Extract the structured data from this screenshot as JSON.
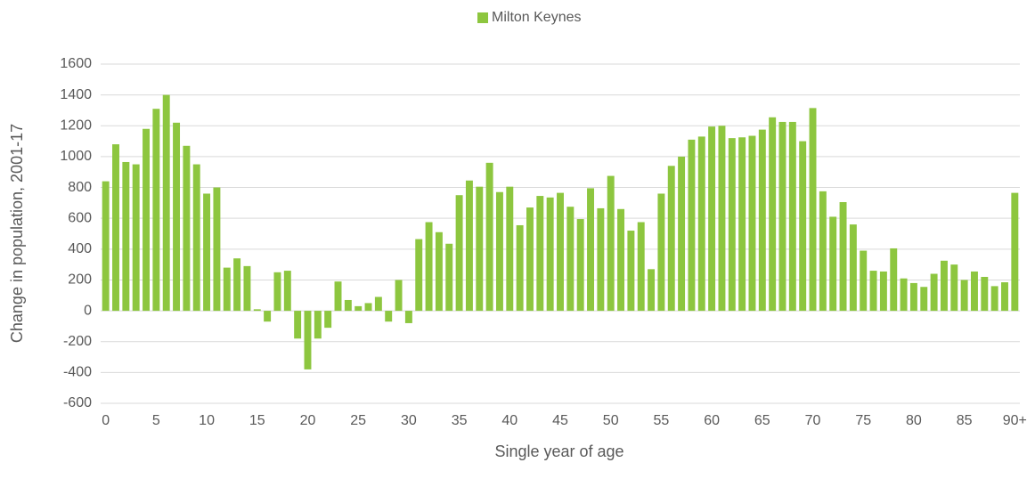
{
  "chart_data": {
    "type": "bar",
    "x_label": "Single year of age",
    "y_label": "Change in population, 2001-17",
    "categories": [
      "0",
      null,
      null,
      null,
      null,
      "5",
      null,
      null,
      null,
      null,
      "10",
      null,
      null,
      null,
      null,
      "15",
      null,
      null,
      null,
      null,
      "20",
      null,
      null,
      null,
      null,
      "25",
      null,
      null,
      null,
      null,
      "30",
      null,
      null,
      null,
      null,
      "35",
      null,
      null,
      null,
      null,
      "40",
      null,
      null,
      null,
      null,
      "45",
      null,
      null,
      null,
      null,
      "50",
      null,
      null,
      null,
      null,
      "55",
      null,
      null,
      null,
      null,
      "60",
      null,
      null,
      null,
      null,
      "65",
      null,
      null,
      null,
      null,
      "70",
      null,
      null,
      null,
      null,
      "75",
      null,
      null,
      null,
      null,
      "80",
      null,
      null,
      null,
      null,
      "85",
      null,
      null,
      null,
      null,
      "90+"
    ],
    "series": [
      {
        "name": "Milton Keynes",
        "color": "#8dc63f",
        "values": [
          840,
          1080,
          965,
          950,
          1180,
          1310,
          1400,
          1220,
          1070,
          950,
          760,
          800,
          280,
          340,
          290,
          10,
          -70,
          250,
          260,
          -180,
          -380,
          -180,
          -110,
          190,
          70,
          30,
          50,
          90,
          -70,
          200,
          -80,
          465,
          575,
          510,
          435,
          750,
          845,
          805,
          960,
          770,
          805,
          555,
          670,
          745,
          735,
          765,
          675,
          595,
          795,
          665,
          875,
          660,
          520,
          575,
          270,
          760,
          940,
          1000,
          1110,
          1130,
          1195,
          1200,
          1120,
          1125,
          1135,
          1175,
          1255,
          1225,
          1225,
          1100,
          1315,
          775,
          610,
          705,
          560,
          390,
          260,
          255,
          405,
          210,
          180,
          155,
          240,
          325,
          300,
          200,
          255,
          220,
          160,
          185,
          765
        ]
      }
    ],
    "ylim": [
      -600,
      1600
    ],
    "yticks": [
      -600,
      -400,
      -200,
      0,
      200,
      400,
      600,
      800,
      1000,
      1200,
      1400,
      1600
    ],
    "grid": true,
    "legend": "top"
  }
}
